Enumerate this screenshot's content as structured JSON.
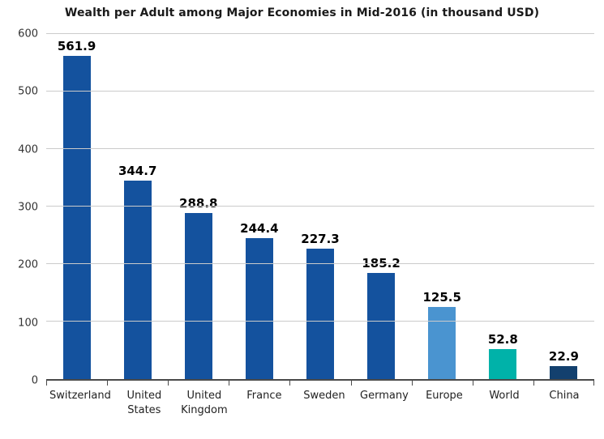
{
  "chart_data": {
    "type": "bar",
    "title": "Wealth per Adult among Major Economies in Mid-2016 (in thousand USD)",
    "categories": [
      "Switzerland",
      "United States",
      "United Kingdom",
      "France",
      "Sweden",
      "Germany",
      "Europe",
      "World",
      "China"
    ],
    "values": [
      561.9,
      344.7,
      288.8,
      244.4,
      227.3,
      185.2,
      125.5,
      52.8,
      22.9
    ],
    "value_labels": [
      "561.9",
      "344.7",
      "288.8",
      "244.4",
      "227.3",
      "185.2",
      "125.5",
      "52.8",
      "22.9"
    ],
    "bar_colors": [
      "#14529E",
      "#14529E",
      "#14529E",
      "#14529E",
      "#14529E",
      "#14529E",
      "#4A94D0",
      "#00B2A9",
      "#13406E"
    ],
    "xlabel": "",
    "ylabel": "",
    "ylim": [
      0,
      600
    ],
    "yticks": [
      0,
      100,
      200,
      300,
      400,
      500,
      600
    ],
    "grid": true,
    "legend": false,
    "colors": {
      "main_bar": "#14529E",
      "europe_bar": "#4A94D0",
      "world_bar": "#00B2A9",
      "china_bar": "#13406E",
      "gridline": "#CBCBCB",
      "axis": "#4A4A4A",
      "title_text": "#1A1A1A",
      "tick_text": "#333333",
      "background": "#FFFFFF"
    }
  }
}
